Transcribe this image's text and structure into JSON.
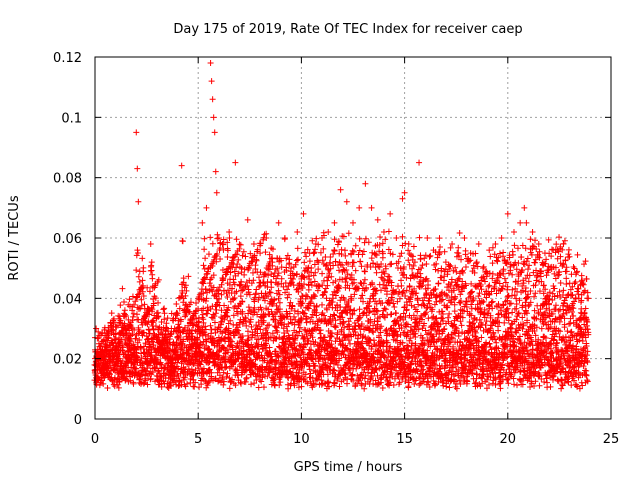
{
  "chart_data": {
    "type": "scatter",
    "title": "Day 175 of 2019, Rate Of TEC Index for receiver caep",
    "xlabel": "GPS time / hours",
    "ylabel": "ROTI / TECUs",
    "xlim": [
      0,
      25
    ],
    "ylim": [
      0,
      0.12
    ],
    "x_ticks": [
      0,
      5,
      10,
      15,
      20,
      25
    ],
    "x_tick_labels": [
      "0",
      "5",
      "10",
      "15",
      "20",
      "25"
    ],
    "y_ticks": [
      0,
      0.02,
      0.04,
      0.06,
      0.08,
      0.1,
      0.12
    ],
    "y_tick_labels": [
      "0",
      "0.02",
      "0.04",
      "0.06",
      "0.08",
      "0.1",
      "0.12"
    ],
    "grid": true,
    "marker": "+",
    "marker_color": "#ff0000",
    "series": [
      {
        "name": "ROTI",
        "description_points": "dense band of ROTI samples over 0-24 h",
        "x": [
          0.0,
          0.3,
          0.6,
          0.9,
          1.2,
          1.5,
          1.8,
          2.0,
          2.05,
          2.1,
          2.4,
          2.7,
          2.75,
          2.8,
          3.1,
          3.4,
          3.7,
          4.0,
          4.2,
          4.3,
          4.6,
          4.9,
          5.2,
          5.4,
          5.5,
          5.6,
          5.65,
          5.7,
          5.75,
          5.8,
          5.85,
          5.9,
          6.0,
          6.2,
          6.5,
          6.8,
          7.1,
          7.4,
          7.7,
          8.0,
          8.3,
          8.6,
          8.9,
          9.2,
          9.5,
          9.8,
          10.1,
          10.4,
          10.7,
          11.0,
          11.3,
          11.6,
          11.9,
          12.2,
          12.5,
          12.8,
          13.1,
          13.4,
          13.7,
          14.0,
          14.3,
          14.6,
          14.9,
          15.0,
          15.2,
          15.5,
          15.7,
          15.8,
          16.1,
          16.4,
          16.7,
          17.0,
          17.3,
          17.6,
          17.9,
          18.2,
          18.5,
          18.8,
          19.1,
          19.4,
          19.7,
          20.0,
          20.3,
          20.6,
          20.8,
          20.9,
          21.2,
          21.5,
          21.8,
          22.1,
          22.4,
          22.7,
          23.0,
          23.3,
          23.6,
          23.9
        ],
        "y": [
          0.02,
          0.022,
          0.026,
          0.028,
          0.034,
          0.03,
          0.036,
          0.095,
          0.083,
          0.072,
          0.038,
          0.058,
          0.052,
          0.044,
          0.028,
          0.025,
          0.03,
          0.035,
          0.084,
          0.04,
          0.032,
          0.036,
          0.065,
          0.07,
          0.05,
          0.118,
          0.112,
          0.106,
          0.1,
          0.095,
          0.082,
          0.075,
          0.06,
          0.058,
          0.062,
          0.085,
          0.05,
          0.066,
          0.058,
          0.055,
          0.06,
          0.052,
          0.065,
          0.06,
          0.05,
          0.062,
          0.068,
          0.055,
          0.058,
          0.06,
          0.062,
          0.065,
          0.076,
          0.072,
          0.065,
          0.07,
          0.078,
          0.07,
          0.066,
          0.062,
          0.068,
          0.06,
          0.073,
          0.075,
          0.058,
          0.052,
          0.085,
          0.05,
          0.06,
          0.056,
          0.055,
          0.052,
          0.058,
          0.055,
          0.06,
          0.055,
          0.052,
          0.05,
          0.056,
          0.058,
          0.06,
          0.068,
          0.062,
          0.065,
          0.07,
          0.065,
          0.062,
          0.058,
          0.055,
          0.054,
          0.056,
          0.058,
          0.045,
          0.048,
          0.046,
          0.04
        ]
      }
    ]
  }
}
